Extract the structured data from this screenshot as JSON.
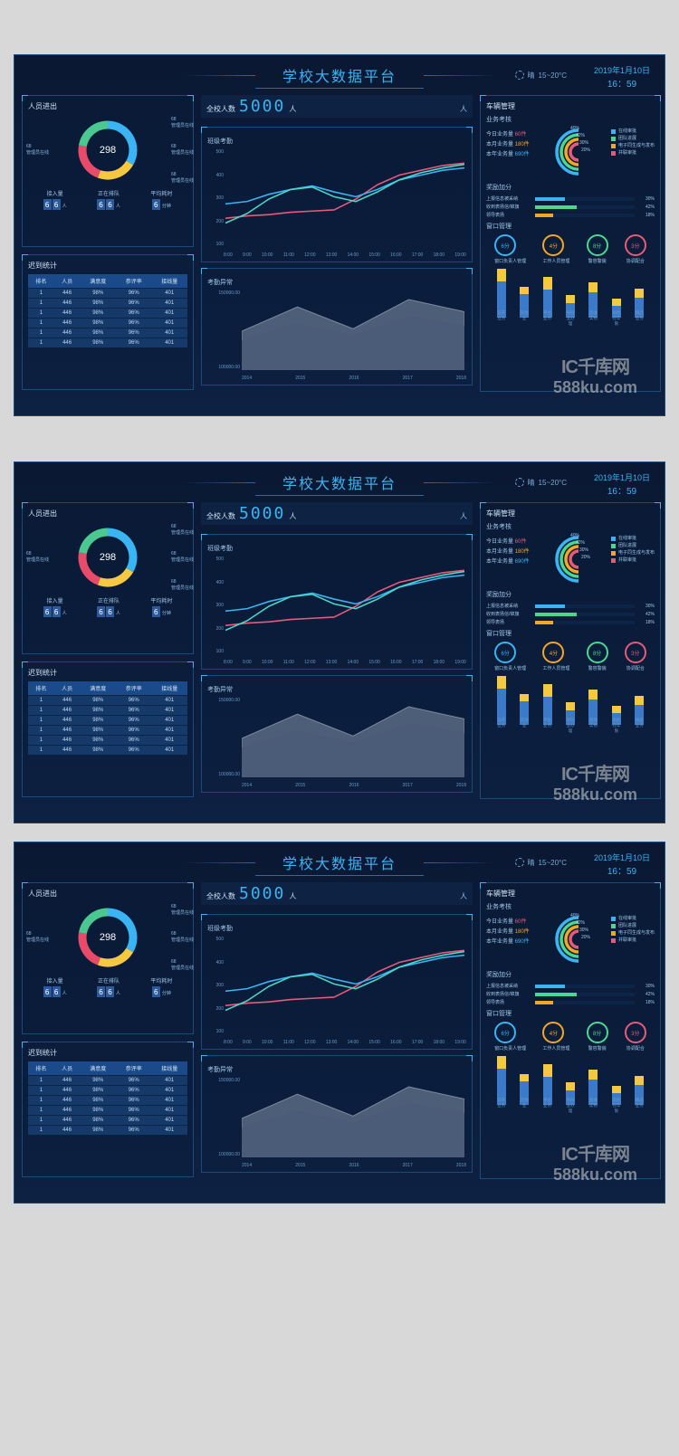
{
  "header": {
    "title": "学校大数据平台",
    "weather_label": "晴",
    "weather_temp": "15~20°C",
    "date": "2019年1月10日",
    "time": "16：59"
  },
  "total": {
    "label": "全校人数",
    "value": "5000",
    "unit": "人"
  },
  "personnel": {
    "title": "人员进出",
    "donut_center": "298",
    "donut_segments": [
      {
        "value": 68,
        "color": "#3ab4f2",
        "start": 0,
        "end": 120,
        "label": "管理员在线"
      },
      {
        "value": 68,
        "color": "#f5c842",
        "start": 120,
        "end": 200,
        "label": "管理员在线"
      },
      {
        "value": 68,
        "color": "#e84a6a",
        "start": 200,
        "end": 280,
        "label": "管理员在线"
      },
      {
        "value": 68,
        "color": "#4ac890",
        "start": 280,
        "end": 360,
        "label": "管理员在线"
      }
    ],
    "stats": [
      {
        "label": "接入量",
        "digits": [
          "6",
          "6"
        ],
        "unit": "人"
      },
      {
        "label": "正在排队",
        "digits": [
          "6",
          "6"
        ],
        "unit": "人"
      },
      {
        "label": "平均耗时",
        "digits": [
          "6"
        ],
        "unit": "分钟"
      }
    ]
  },
  "late": {
    "title": "迟到统计",
    "columns": [
      "排名",
      "人员",
      "满意度",
      "参评率",
      "接线量"
    ],
    "rows": [
      [
        "1",
        "446",
        "98%",
        "96%",
        "401"
      ],
      [
        "1",
        "446",
        "98%",
        "96%",
        "401"
      ],
      [
        "1",
        "446",
        "98%",
        "96%",
        "401"
      ],
      [
        "1",
        "446",
        "98%",
        "96%",
        "401"
      ],
      [
        "1",
        "446",
        "98%",
        "96%",
        "401"
      ],
      [
        "1",
        "446",
        "98%",
        "96%",
        "401"
      ]
    ],
    "header_bg": "#1a4a8a",
    "row_bg": "#153a6a"
  },
  "attendance": {
    "title": "班级考勤",
    "y_ticks": [
      "500",
      "400",
      "300",
      "200",
      "100"
    ],
    "x_ticks": [
      "8:00",
      "9:00",
      "10:00",
      "11:00",
      "12:00",
      "13:00",
      "14:00",
      "15:00",
      "16:00",
      "17:00",
      "18:00",
      "19:00"
    ],
    "series": [
      {
        "color": "#e85a7a",
        "points": [
          220,
          230,
          235,
          245,
          250,
          255,
          300,
          360,
          400,
          420,
          440,
          450
        ]
      },
      {
        "color": "#3ab4f2",
        "points": [
          280,
          290,
          320,
          340,
          355,
          330,
          310,
          340,
          380,
          400,
          420,
          430
        ]
      },
      {
        "color": "#4ad8c8",
        "points": [
          200,
          240,
          300,
          340,
          350,
          310,
          290,
          330,
          380,
          410,
          430,
          445
        ]
      }
    ],
    "ylim": [
      100,
      500
    ]
  },
  "anomaly": {
    "title": "考勤异常",
    "y_ticks": [
      "150000.00",
      "100000.00"
    ],
    "x_ticks": [
      "2014",
      "2015",
      "2016",
      "2017",
      "2018"
    ],
    "series": [
      {
        "color": "#7a8aa0",
        "fill": "rgba(122,138,160,0.6)",
        "points": [
          80000,
          130000,
          85000,
          145000,
          120000
        ]
      },
      {
        "color": "#4a5a78",
        "fill": "rgba(74,90,120,0.5)",
        "points": [
          60000,
          95000,
          70000,
          110000,
          90000
        ]
      }
    ],
    "ylim": [
      0,
      160000
    ]
  },
  "vehicle": {
    "title": "车辆管理",
    "biz_title": "业务考核",
    "biz_stats": [
      {
        "label": "今日业务量",
        "value": "60件",
        "class": "v1"
      },
      {
        "label": "本月业务量",
        "value": "180件",
        "class": "v2"
      },
      {
        "label": "本年业务量",
        "value": "690件",
        "class": "v3"
      }
    ],
    "arc_segments": [
      {
        "color": "#3ab4f2",
        "pct": "40%",
        "radius": 24
      },
      {
        "color": "#4ad890",
        "pct": "42%",
        "radius": 19
      },
      {
        "color": "#f5a623",
        "pct": "30%",
        "radius": 14
      },
      {
        "color": "#e85a7a",
        "pct": "20%",
        "radius": 9
      }
    ],
    "legend": [
      {
        "color": "#3ab4f2",
        "label": "在线审批"
      },
      {
        "color": "#4ad890",
        "label": "团队进展"
      },
      {
        "color": "#f5a623",
        "label": "电子同生成与发布"
      },
      {
        "color": "#e85a7a",
        "label": "并联审批"
      }
    ],
    "bonus_title": "奖励加分",
    "progress": [
      {
        "label": "上报信息被采纳",
        "pct": 30,
        "color": "#3ab4f2"
      },
      {
        "label": "收到表扬信/锦旗",
        "pct": 42,
        "color": "#4ad890"
      },
      {
        "label": "领导表扬",
        "pct": 18,
        "color": "#f5a623"
      }
    ],
    "window_title": "窗口管理",
    "gauges": [
      {
        "value": "6分",
        "class": "c1",
        "label": "窗口负责人管理"
      },
      {
        "value": "4分",
        "class": "c2",
        "label": "工作人员管理"
      },
      {
        "value": "8分",
        "class": "c3",
        "label": "警容警貌"
      },
      {
        "value": "3分",
        "class": "c4",
        "label": "协调配合"
      }
    ],
    "bar_chart": {
      "categories": [
        "双开业务",
        "其他业",
        "平台业务",
        "导同业办理",
        "查收实物",
        "高档在年限",
        "精品业务"
      ],
      "series": [
        {
          "color": "#3a7ac8",
          "values": [
            55,
            35,
            42,
            22,
            38,
            18,
            30
          ]
        },
        {
          "color": "#f5c842",
          "values": [
            18,
            12,
            20,
            12,
            15,
            10,
            14
          ]
        }
      ],
      "ylim": [
        0,
        75
      ]
    }
  },
  "watermark": {
    "logo": "IC千库网",
    "url": "588ku.com"
  }
}
